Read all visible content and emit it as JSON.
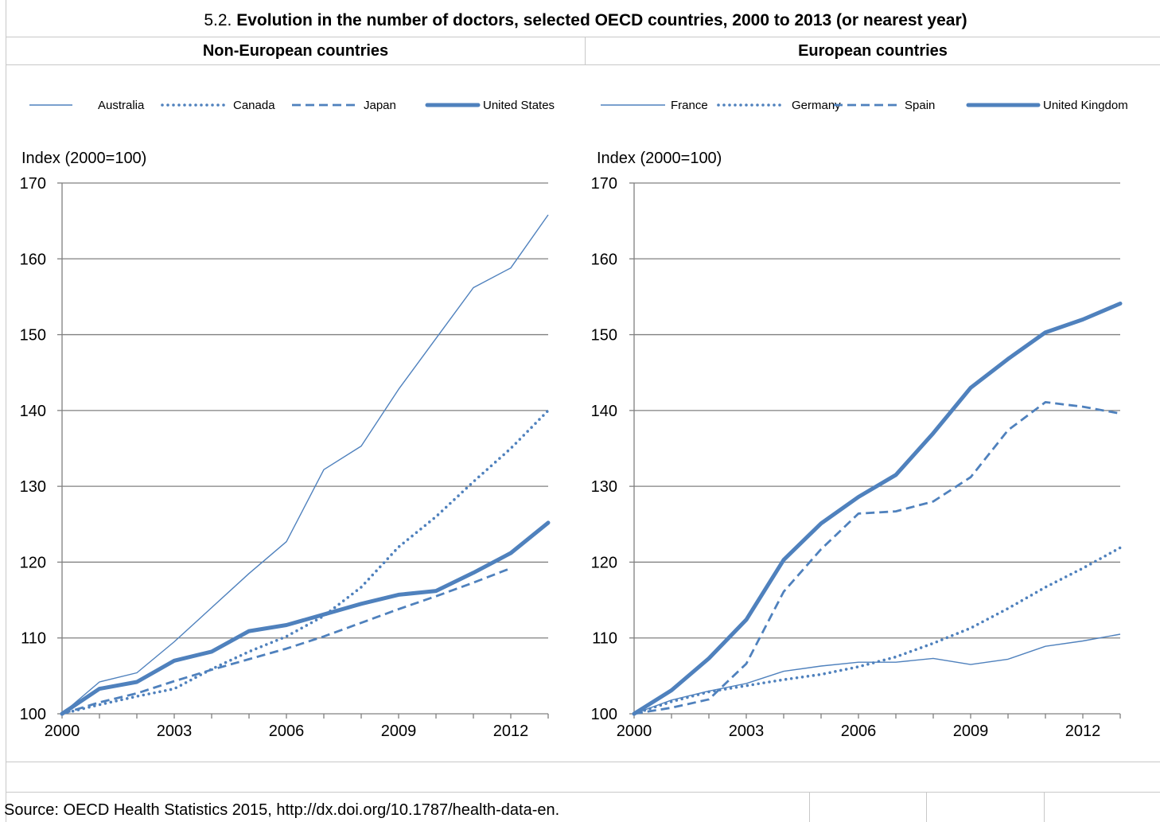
{
  "title_number": "5.2.",
  "title_text": "Evolution in the number of doctors, selected OECD countries, 2000 to 2013 (or nearest year)",
  "source": "Source: OECD Health Statistics 2015, http://dx.doi.org/10.1787/health-data-en.",
  "colors": {
    "series": "#4f81bd",
    "grid": "#808080",
    "axis": "#808080",
    "border": "#c8c8c8"
  },
  "chart_data": [
    {
      "type": "line",
      "title": "Non-European countries",
      "ylabel": "Index (2000=100)",
      "xlabel": "",
      "x": [
        2000,
        2001,
        2002,
        2003,
        2004,
        2005,
        2006,
        2007,
        2008,
        2009,
        2010,
        2011,
        2012,
        2013
      ],
      "xticks": [
        2000,
        2003,
        2006,
        2009,
        2012
      ],
      "xtick_labels": [
        "2000",
        "2003",
        "2006",
        "2009",
        "2012"
      ],
      "ylim": [
        100,
        170
      ],
      "yticks": [
        100,
        110,
        120,
        130,
        140,
        150,
        160,
        170
      ],
      "ytick_labels": [
        "100",
        "110",
        "120",
        "130",
        "140",
        "150",
        "160",
        "170"
      ],
      "grid": true,
      "legend_position": "top",
      "series": [
        {
          "name": "Australia",
          "style": "thin",
          "values": [
            100,
            104.2,
            105.4,
            109.5,
            114.0,
            118.5,
            122.7,
            132.2,
            135.3,
            142.8,
            149.5,
            156.2,
            158.8,
            165.8
          ]
        },
        {
          "name": "Canada",
          "style": "dotted",
          "values": [
            100,
            101.2,
            102.3,
            103.3,
            105.9,
            108.2,
            110.2,
            112.9,
            116.7,
            122.0,
            126.0,
            130.6,
            135.0,
            140.0
          ]
        },
        {
          "name": "Japan",
          "style": "dashed",
          "values": [
            100,
            101.5,
            102.7,
            104.3,
            105.8,
            107.2,
            108.6,
            110.2,
            112.0,
            113.8,
            115.5,
            117.3,
            119.2,
            null
          ]
        },
        {
          "name": "United States",
          "style": "thick",
          "values": [
            100,
            103.3,
            104.2,
            107.0,
            108.2,
            110.9,
            111.7,
            113.1,
            114.5,
            115.7,
            116.2,
            118.6,
            121.2,
            125.2
          ]
        }
      ]
    },
    {
      "type": "line",
      "title": "European countries",
      "ylabel": "Index (2000=100)",
      "xlabel": "",
      "x": [
        2000,
        2001,
        2002,
        2003,
        2004,
        2005,
        2006,
        2007,
        2008,
        2009,
        2010,
        2011,
        2012,
        2013
      ],
      "xticks": [
        2000,
        2003,
        2006,
        2009,
        2012
      ],
      "xtick_labels": [
        "2000",
        "2003",
        "2006",
        "2009",
        "2012"
      ],
      "ylim": [
        100,
        170
      ],
      "yticks": [
        100,
        110,
        120,
        130,
        140,
        150,
        160,
        170
      ],
      "ytick_labels": [
        "100",
        "110",
        "120",
        "130",
        "140",
        "150",
        "160",
        "170"
      ],
      "grid": true,
      "legend_position": "top",
      "series": [
        {
          "name": "France",
          "style": "thin",
          "values": [
            100,
            101.8,
            103.0,
            104.0,
            105.6,
            106.3,
            106.8,
            106.8,
            107.3,
            106.5,
            107.2,
            108.9,
            109.6,
            110.5
          ]
        },
        {
          "name": "Germany",
          "style": "dotted",
          "values": [
            100,
            101.6,
            102.9,
            103.7,
            104.5,
            105.2,
            106.2,
            107.5,
            109.3,
            111.3,
            113.9,
            116.7,
            119.2,
            121.9
          ]
        },
        {
          "name": "Spain",
          "style": "dashed",
          "values": [
            100,
            100.8,
            101.9,
            106.6,
            116.1,
            121.7,
            126.4,
            126.7,
            128.0,
            131.2,
            137.4,
            141.1,
            140.5,
            139.6
          ]
        },
        {
          "name": "United Kingdom",
          "style": "thick",
          "values": [
            100,
            103.1,
            107.3,
            112.4,
            120.3,
            125.1,
            128.6,
            131.5,
            137.0,
            143.0,
            146.8,
            150.3,
            152.0,
            154.1
          ]
        }
      ]
    }
  ]
}
